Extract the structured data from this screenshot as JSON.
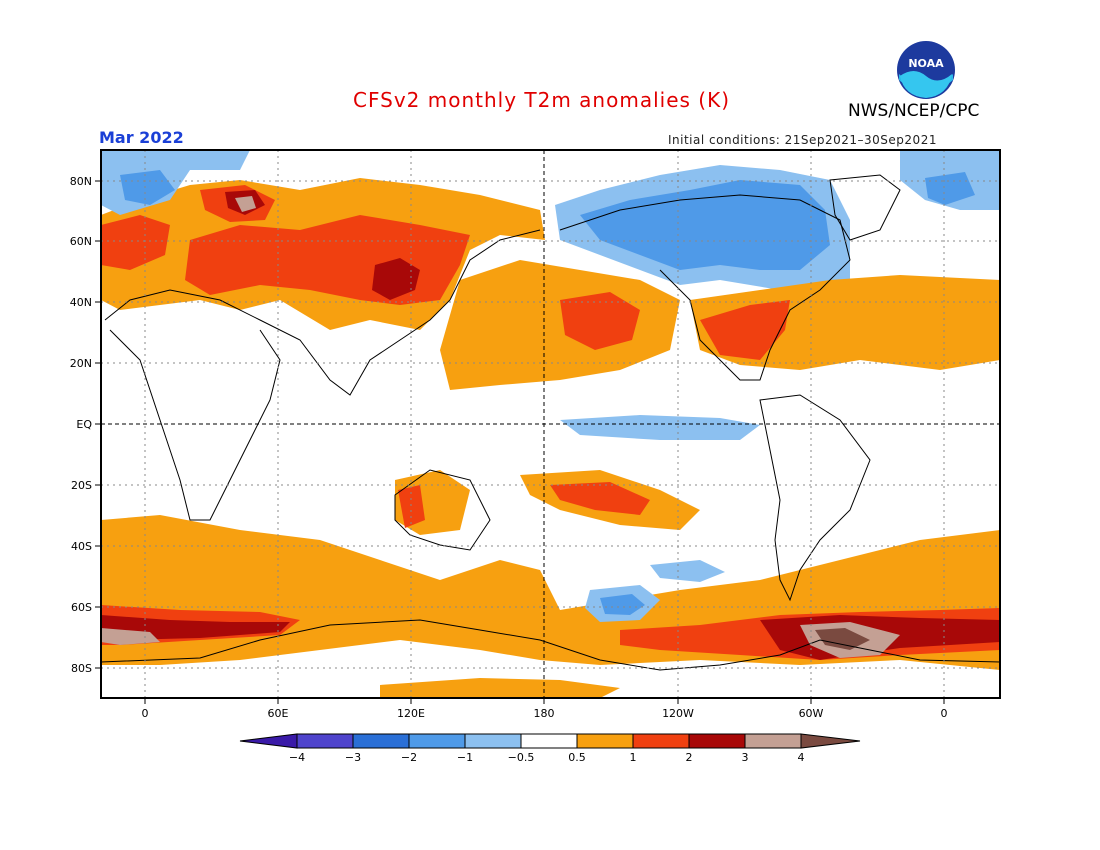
{
  "header": {
    "title": "CFSv2 monthly T2m anomalies (K)",
    "month": "Mar 2022",
    "initial_conditions": "Initial conditions: 21Sep2021–30Sep2021",
    "agency": "NWS/NCEP/CPC",
    "logo_text": "NOAA"
  },
  "map": {
    "lat_labels": [
      "80N",
      "60N",
      "40N",
      "20N",
      "EQ",
      "20S",
      "40S",
      "60S",
      "80S"
    ],
    "lon_labels": [
      "0",
      "60E",
      "120E",
      "180",
      "120W",
      "60W",
      "0"
    ]
  },
  "colorbar": {
    "tick_labels": [
      "−4",
      "−3",
      "−2",
      "−1",
      "−0.5",
      "0.5",
      "1",
      "2",
      "3",
      "4"
    ],
    "colors": [
      "#3a1aa8",
      "#4f44cc",
      "#2a6fd6",
      "#4f9ae8",
      "#8cc0f0",
      "#ffffff",
      "#f7a010",
      "#f04010",
      "#a80808",
      "#c4a094",
      "#7a4a40"
    ]
  }
}
